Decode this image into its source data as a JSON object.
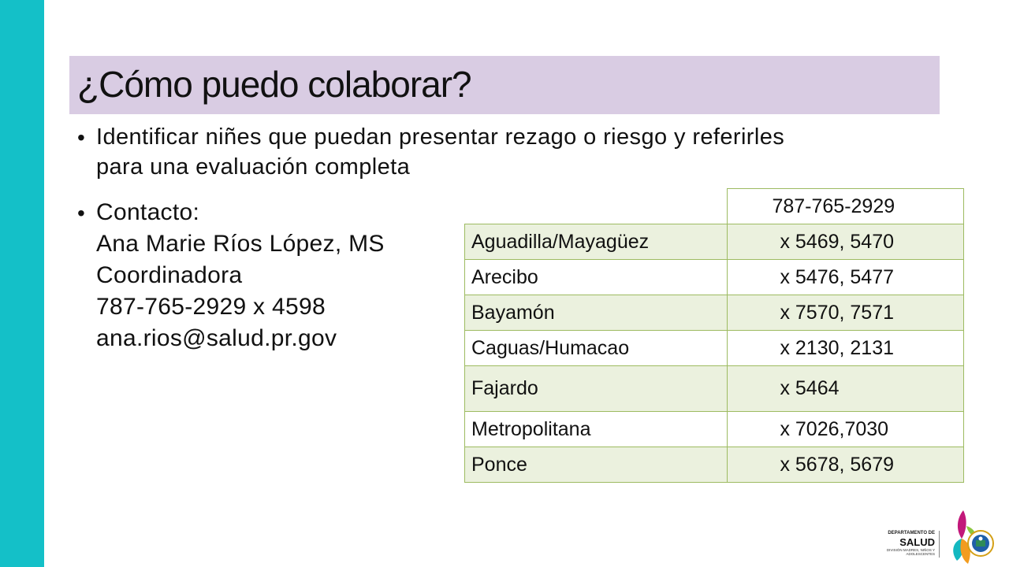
{
  "slide": {
    "title": "¿Cómo puedo colaborar?",
    "bullet_symbol": "•",
    "bullet1": {
      "line1": "Identificar niñes que puedan presentar rezago o riesgo y referirles",
      "line2": "para una evaluación completa"
    },
    "contact": {
      "label": "Contacto:",
      "name": "Ana Marie Ríos López, MS",
      "role": "Coordinadora",
      "phone": "787-765-2929 x 4598",
      "email": "ana.rios@salud.pr.gov"
    },
    "table": {
      "header_phone": "787-765-2929",
      "rows": [
        {
          "region": "Aguadilla/Mayagüez",
          "ext": "x 5469, 5470"
        },
        {
          "region": "Arecibo",
          "ext": "x 5476, 5477"
        },
        {
          "region": "Bayamón",
          "ext": "x 7570, 7571"
        },
        {
          "region": "Caguas/Humacao",
          "ext": "x 2130, 2131"
        },
        {
          "region": "Fajardo",
          "ext": "x 5464"
        },
        {
          "region": "Metropolitana",
          "ext": " x 7026,7030"
        },
        {
          "region": "Ponce",
          "ext": "x 5678, 5679"
        }
      ]
    },
    "logo": {
      "dept": "DEPARTAMENTO DE",
      "name": "SALUD",
      "division": "DIVISIÓN MADRES, NIÑOS Y ADOLESCENTES"
    }
  },
  "colors": {
    "side_bar": "#14c0c8",
    "title_band": "#d9cce3",
    "table_border": "#9dbb61",
    "table_shade": "#ebf1de"
  }
}
